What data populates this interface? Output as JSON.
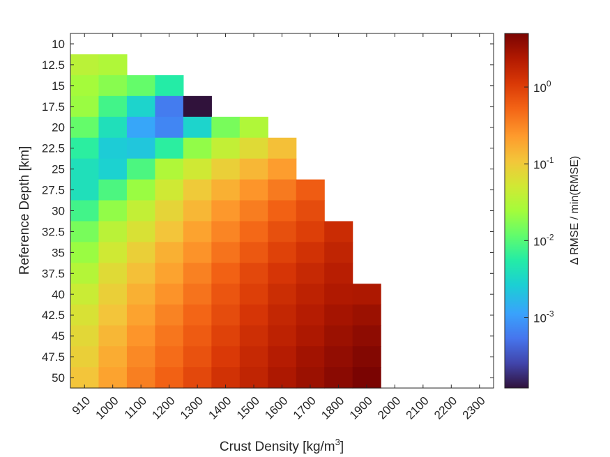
{
  "chart_data": {
    "type": "heatmap",
    "xlabel_main": "Crust Density [kg/m",
    "xlabel_sup": "3",
    "xlabel_end": "]",
    "ylabel": "Reference Depth [km]",
    "x_categories": [
      "910",
      "1000",
      "1100",
      "1200",
      "1300",
      "1400",
      "1500",
      "1600",
      "1700",
      "1800",
      "1900",
      "2000",
      "2100",
      "2200",
      "2300"
    ],
    "y_categories": [
      "10",
      "12.5",
      "15",
      "17.5",
      "20",
      "22.5",
      "25",
      "27.5",
      "30",
      "32.5",
      "35",
      "37.5",
      "40",
      "42.5",
      "45",
      "47.5",
      "50"
    ],
    "scale": "log",
    "colormap": "turbo",
    "grid": false,
    "colorbar": {
      "label": "Δ RMSE / min(RMSE)",
      "range": [
        0.00012,
        5.0
      ],
      "ticks": [
        {
          "base": "10",
          "exp": "-3",
          "value": 0.001
        },
        {
          "base": "10",
          "exp": "-2",
          "value": 0.01
        },
        {
          "base": "10",
          "exp": "-1",
          "value": 0.1
        },
        {
          "base": "10",
          "exp": "0",
          "value": 1
        }
      ]
    },
    "values": [
      [
        null,
        null,
        null,
        null,
        null,
        null,
        null,
        null,
        null,
        null,
        null,
        null,
        null,
        null,
        null
      ],
      [
        0.035,
        0.03,
        null,
        null,
        null,
        null,
        null,
        null,
        null,
        null,
        null,
        null,
        null,
        null,
        null
      ],
      [
        0.025,
        0.018,
        0.012,
        0.0055,
        null,
        null,
        null,
        null,
        null,
        null,
        null,
        null,
        null,
        null,
        null
      ],
      [
        0.022,
        0.008,
        0.003,
        0.0006,
        0.00012,
        null,
        null,
        null,
        null,
        null,
        null,
        null,
        null,
        null,
        null
      ],
      [
        0.012,
        0.004,
        0.0012,
        0.0007,
        0.003,
        0.015,
        0.03,
        null,
        null,
        null,
        null,
        null,
        null,
        null,
        null
      ],
      [
        0.006,
        0.0025,
        0.0022,
        0.006,
        0.02,
        0.04,
        0.07,
        0.12,
        null,
        null,
        null,
        null,
        null,
        null,
        null
      ],
      [
        0.004,
        0.0028,
        0.009,
        0.03,
        0.05,
        0.09,
        0.14,
        0.22,
        null,
        null,
        null,
        null,
        null,
        null,
        null
      ],
      [
        0.004,
        0.009,
        0.022,
        0.05,
        0.1,
        0.16,
        0.25,
        0.38,
        0.6,
        null,
        null,
        null,
        null,
        null,
        null
      ],
      [
        0.008,
        0.02,
        0.04,
        0.08,
        0.14,
        0.24,
        0.36,
        0.55,
        0.8,
        null,
        null,
        null,
        null,
        null,
        null
      ],
      [
        0.015,
        0.035,
        0.06,
        0.11,
        0.2,
        0.32,
        0.5,
        0.75,
        1.0,
        1.5,
        null,
        null,
        null,
        null,
        null
      ],
      [
        0.022,
        0.05,
        0.09,
        0.16,
        0.26,
        0.42,
        0.65,
        0.95,
        1.3,
        1.8,
        null,
        null,
        null,
        null,
        null
      ],
      [
        0.032,
        0.07,
        0.12,
        0.2,
        0.34,
        0.55,
        0.85,
        1.2,
        1.6,
        2.1,
        null,
        null,
        null,
        null,
        null
      ],
      [
        0.045,
        0.09,
        0.16,
        0.26,
        0.42,
        0.68,
        1.0,
        1.45,
        1.9,
        2.4,
        2.5,
        null,
        null,
        null,
        null
      ],
      [
        0.06,
        0.11,
        0.2,
        0.33,
        0.52,
        0.8,
        1.2,
        1.7,
        2.2,
        2.8,
        3.2,
        null,
        null,
        null,
        null
      ],
      [
        0.075,
        0.14,
        0.25,
        0.4,
        0.62,
        0.95,
        1.4,
        1.9,
        2.5,
        3.2,
        3.8,
        null,
        null,
        null,
        null
      ],
      [
        0.09,
        0.17,
        0.3,
        0.47,
        0.72,
        1.1,
        1.6,
        2.2,
        2.9,
        3.6,
        4.4,
        null,
        null,
        null,
        null
      ],
      [
        0.11,
        0.2,
        0.35,
        0.55,
        0.85,
        1.3,
        1.8,
        2.5,
        3.2,
        4.0,
        5.0,
        null,
        null,
        null,
        null
      ]
    ]
  }
}
